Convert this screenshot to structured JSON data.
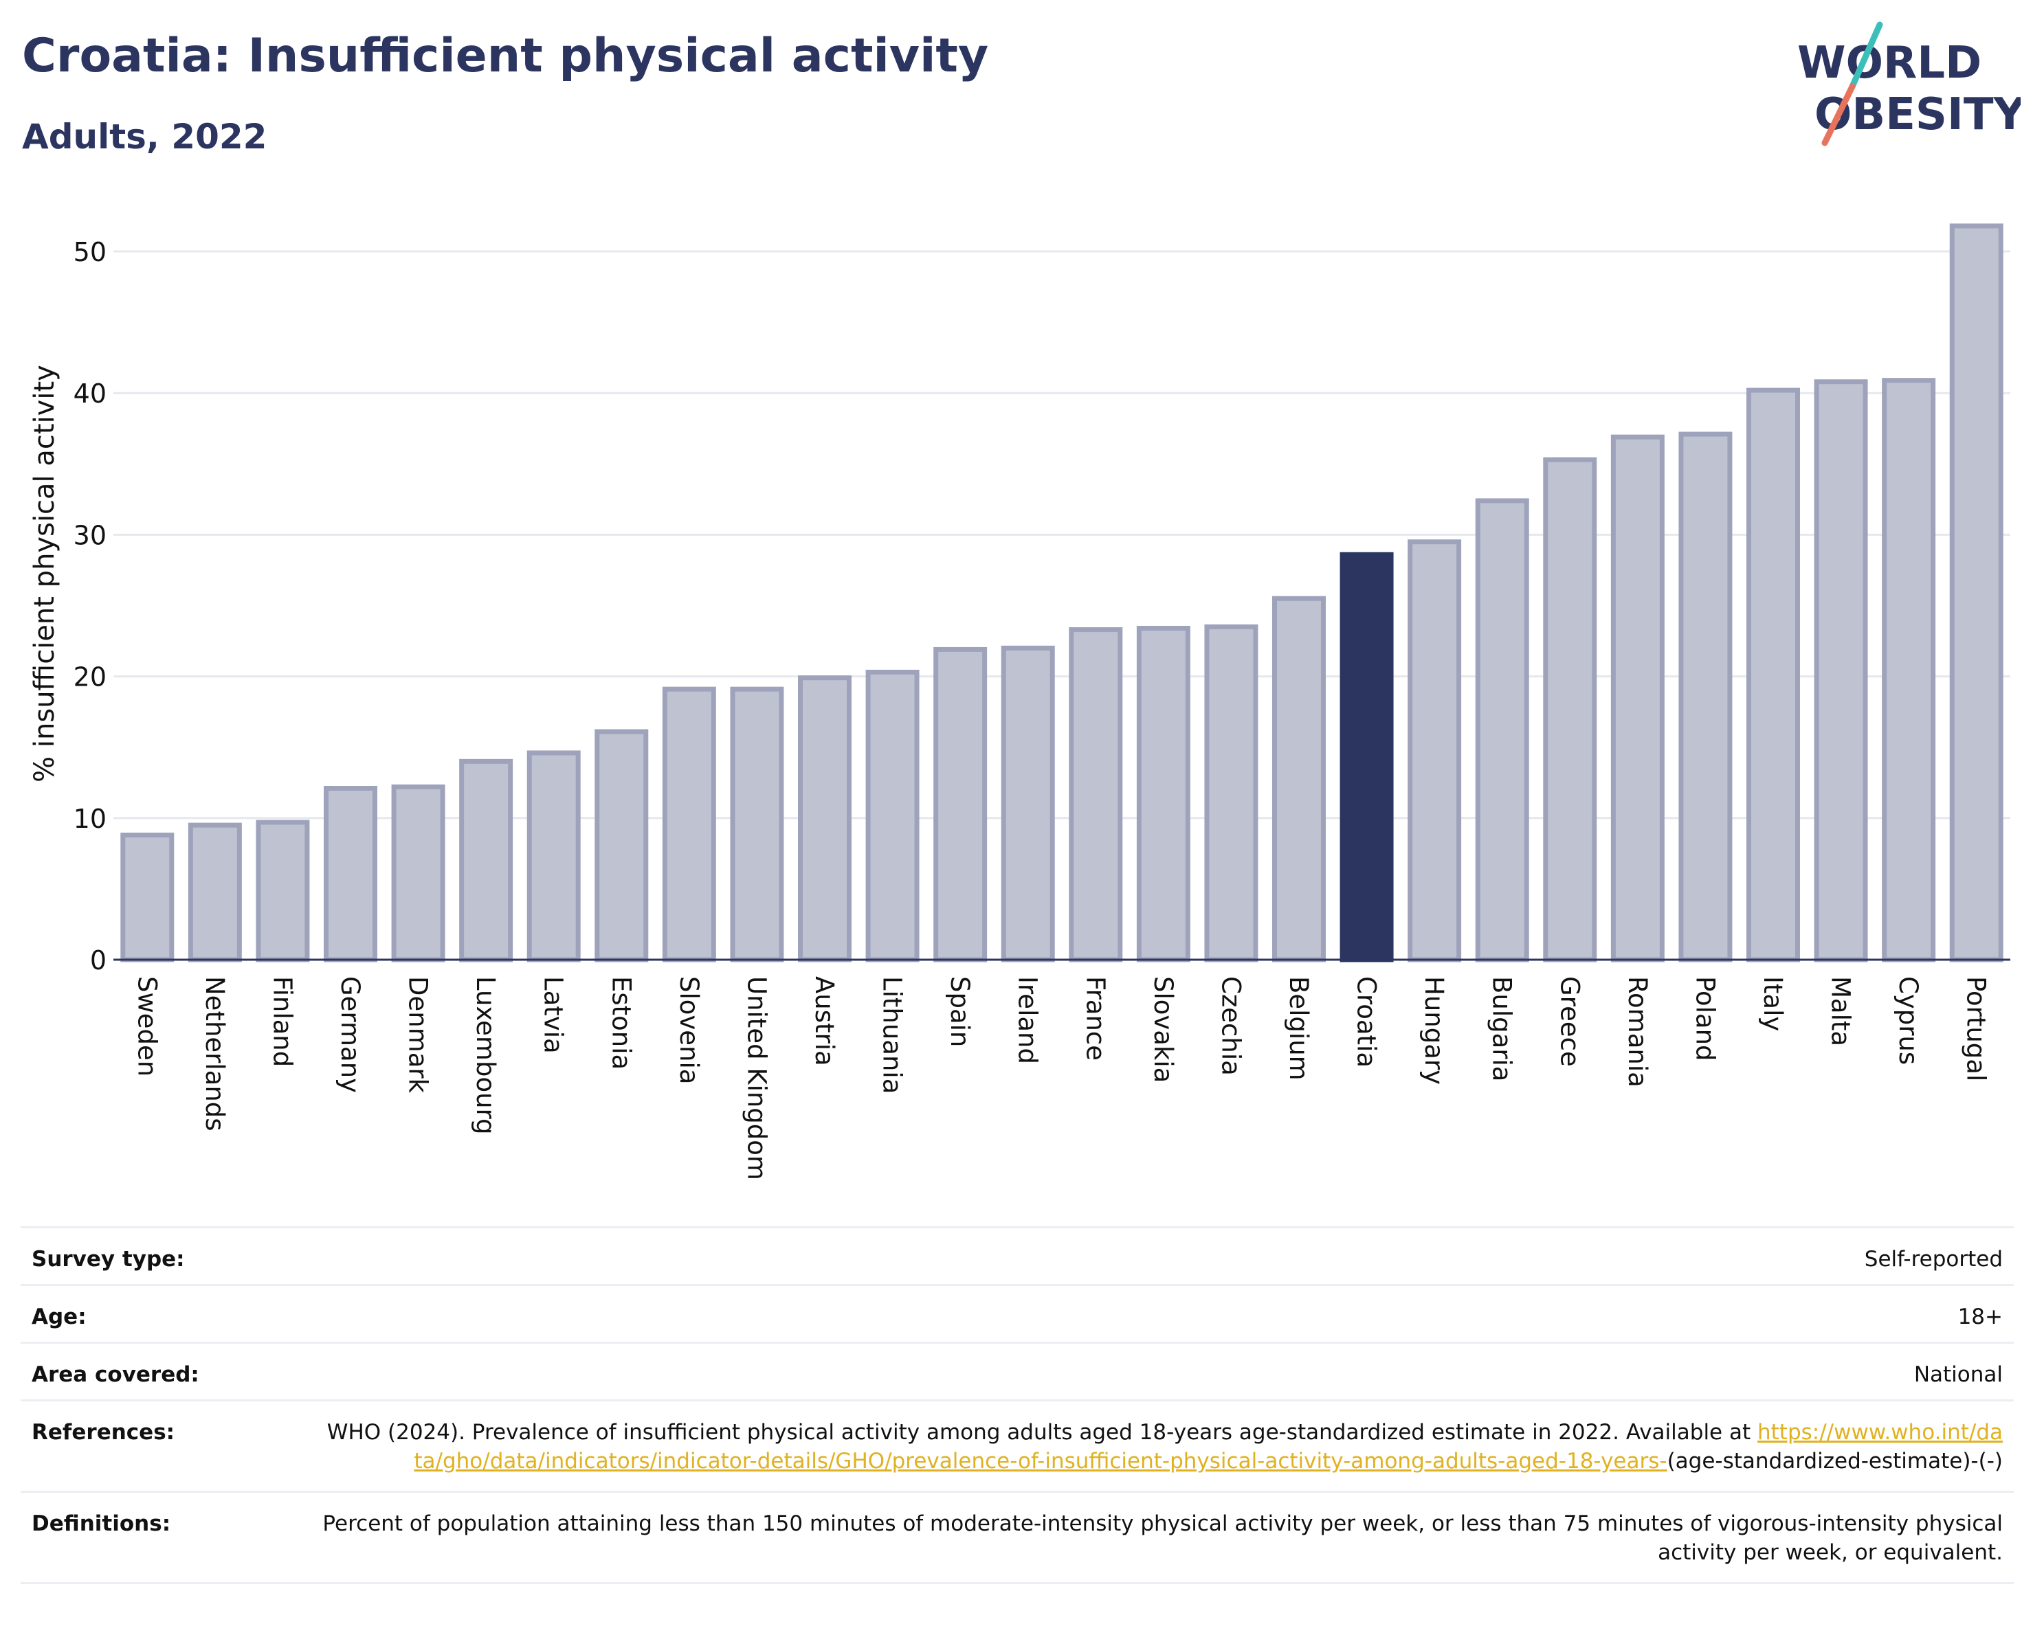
{
  "header": {
    "title": "Croatia: Insufficient physical activity",
    "subtitle": "Adults, 2022",
    "logo_text_line1": "WORLD",
    "logo_text_line2": "OBESITY"
  },
  "colors": {
    "highlight": "#2b3560",
    "bar_fill": "#bfc2d0",
    "bar_stroke": "#9ea3bb",
    "title": "#2b3560",
    "link": "#e0b120",
    "logo_teal": "#3bbfb8",
    "logo_coral": "#e8735c"
  },
  "chart_data": {
    "type": "bar",
    "ylabel": "% insufficient physical activity",
    "xlabel": "",
    "ylim": [
      0,
      53
    ],
    "yticks": [
      0,
      10,
      20,
      30,
      40,
      50
    ],
    "grid": true,
    "highlight": "Croatia",
    "categories": [
      "Sweden",
      "Netherlands",
      "Finland",
      "Germany",
      "Denmark",
      "Luxembourg",
      "Latvia",
      "Estonia",
      "Slovenia",
      "United Kingdom",
      "Austria",
      "Lithuania",
      "Spain",
      "Ireland",
      "France",
      "Slovakia",
      "Czechia",
      "Belgium",
      "Croatia",
      "Hungary",
      "Bulgaria",
      "Greece",
      "Romania",
      "Poland",
      "Italy",
      "Malta",
      "Cyprus",
      "Portugal"
    ],
    "values": [
      8.8,
      9.5,
      9.7,
      12.1,
      12.2,
      14.0,
      14.6,
      16.1,
      19.1,
      19.1,
      19.9,
      20.3,
      21.9,
      22.0,
      23.3,
      23.4,
      23.5,
      25.5,
      28.6,
      29.5,
      32.4,
      35.3,
      36.9,
      37.1,
      40.2,
      40.8,
      40.9,
      51.8
    ]
  },
  "metadata": [
    {
      "key": "Survey type:",
      "value": "Self-reported"
    },
    {
      "key": "Age:",
      "value": "18+"
    },
    {
      "key": "Area covered:",
      "value": "National"
    },
    {
      "key": "References:",
      "value_text": "WHO (2024). Prevalence of insufficient physical activity among adults aged 18-years age-standardized estimate in 2022. Available at",
      "link": "https://www.who.int/data/gho/data/indicators/indicator-details/GHO/prevalence-of-insufficient-physical-activity-among-adults-aged-18-years-",
      "value_suffix": "(age-standardized-estimate)-(-)"
    },
    {
      "key": "Definitions:",
      "value": "Percent of population attaining less than 150 minutes of moderate-intensity physical activity per week, or less than 75 minutes of vigorous-intensity physical activity per week, or equivalent."
    }
  ]
}
